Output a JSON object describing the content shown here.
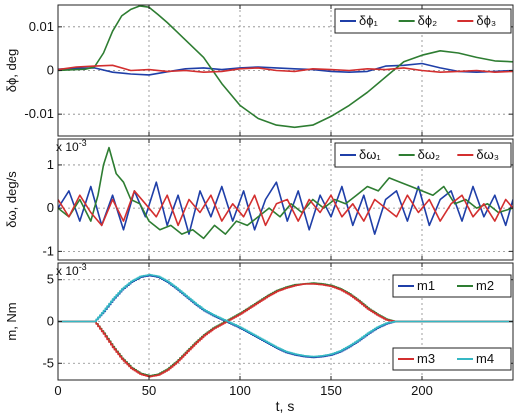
{
  "figure": {
    "xlabel": "t, s"
  },
  "chart_data": [
    {
      "type": "line",
      "ylabel": "δϕ, deg",
      "xlim": [
        0,
        250
      ],
      "ylim": [
        -0.015,
        0.015
      ],
      "xticks": [
        0,
        50,
        100,
        150,
        200
      ],
      "yticks": [
        -0.01,
        0,
        0.01
      ],
      "ytick_labels": [
        "-0.01",
        "0",
        "0.01"
      ],
      "exponent_label": "",
      "grid": true,
      "legend": {
        "placement": "top-right",
        "entries": [
          "δϕ₁",
          "δϕ₂",
          "δϕ₃"
        ]
      },
      "series": [
        {
          "name": "δϕ₁",
          "color": "#1f3fa8",
          "x": [
            0,
            10,
            20,
            30,
            40,
            50,
            60,
            70,
            80,
            90,
            100,
            110,
            120,
            130,
            140,
            150,
            160,
            170,
            180,
            190,
            200,
            210,
            220,
            230,
            240,
            250
          ],
          "y": [
            0.0003,
            0.0005,
            0.0006,
            -0.0004,
            -0.0008,
            -0.001,
            -0.0003,
            0.0004,
            0.0006,
            0.0002,
            0.0006,
            0.0008,
            0.0006,
            0.0004,
            0.0002,
            -0.0002,
            -0.0004,
            -0.0002,
            0.001,
            0.0012,
            0.0016,
            0.0006,
            -0.0002,
            -0.0004,
            -0.0002,
            0.0
          ]
        },
        {
          "name": "δϕ₂",
          "color": "#2e7d32",
          "x": [
            0,
            10,
            15,
            20,
            25,
            30,
            35,
            40,
            45,
            50,
            55,
            60,
            65,
            70,
            80,
            90,
            100,
            110,
            120,
            130,
            140,
            150,
            160,
            170,
            180,
            190,
            200,
            210,
            220,
            230,
            240,
            250
          ],
          "y": [
            0.0,
            0.0002,
            0.0003,
            0.0008,
            0.004,
            0.009,
            0.0125,
            0.014,
            0.0148,
            0.0145,
            0.0128,
            0.011,
            0.009,
            0.007,
            0.003,
            -0.003,
            -0.008,
            -0.011,
            -0.0125,
            -0.013,
            -0.0125,
            -0.0105,
            -0.008,
            -0.005,
            -0.0015,
            0.002,
            0.0035,
            0.0045,
            0.004,
            0.003,
            0.0022,
            0.002
          ]
        },
        {
          "name": "δϕ₃",
          "color": "#d32f2f",
          "x": [
            0,
            10,
            20,
            30,
            40,
            50,
            60,
            70,
            80,
            90,
            100,
            110,
            120,
            130,
            140,
            150,
            160,
            170,
            180,
            190,
            200,
            210,
            220,
            230,
            240,
            250
          ],
          "y": [
            0.0002,
            0.0008,
            0.001,
            0.0012,
            0.0,
            0.0002,
            -0.0002,
            0.0,
            -0.0004,
            -0.0002,
            0.0004,
            0.0006,
            0.0,
            -0.0002,
            0.0004,
            0.0002,
            0.0,
            0.0004,
            0.0002,
            0.0006,
            0.0,
            -0.0004,
            -0.0002,
            0.0,
            -0.0004,
            -0.0002
          ]
        }
      ]
    },
    {
      "type": "line",
      "ylabel": "δω, deg/s",
      "xlim": [
        0,
        250
      ],
      "ylim": [
        -0.0012,
        0.0016
      ],
      "xticks": [
        0,
        50,
        100,
        150,
        200
      ],
      "yticks": [
        -0.001,
        0,
        0.001
      ],
      "ytick_labels": [
        "-1",
        "0",
        "1"
      ],
      "exponent_label": "x 10",
      "exponent_power": "-3",
      "grid": true,
      "legend": {
        "placement": "top-right",
        "entries": [
          "δω₁",
          "δω₂",
          "δω₃"
        ]
      },
      "series": [
        {
          "name": "δω₁",
          "color": "#1f3fa8",
          "x": [
            0,
            6,
            12,
            18,
            24,
            30,
            36,
            42,
            48,
            54,
            60,
            66,
            72,
            78,
            84,
            90,
            96,
            102,
            108,
            114,
            120,
            126,
            132,
            138,
            144,
            150,
            156,
            162,
            168,
            174,
            180,
            186,
            192,
            198,
            204,
            210,
            216,
            222,
            228,
            234,
            240,
            246,
            250
          ],
          "y": [
            0.0,
            0.0004,
            -0.0003,
            0.0005,
            -0.0004,
            0.0003,
            -0.0005,
            0.0004,
            -0.0002,
            0.0006,
            -0.0004,
            0.0003,
            -0.0006,
            0.0004,
            -0.0002,
            0.0005,
            -0.0003,
            0.0004,
            -0.0005,
            0.0002,
            0.0006,
            -0.0003,
            0.0004,
            -0.0005,
            0.0003,
            -0.0002,
            0.0005,
            -0.0004,
            0.0003,
            -0.0006,
            0.0002,
            0.0004,
            -0.0003,
            0.0005,
            -0.0004,
            0.0002,
            0.0004,
            -0.0003,
            0.0005,
            -0.0002,
            0.0003,
            -0.0004,
            0.0002
          ]
        },
        {
          "name": "δω₂",
          "color": "#2e7d32",
          "x": [
            0,
            6,
            12,
            18,
            22,
            25,
            28,
            32,
            36,
            40,
            45,
            50,
            56,
            62,
            68,
            74,
            80,
            86,
            92,
            98,
            104,
            110,
            116,
            122,
            128,
            134,
            140,
            146,
            152,
            158,
            164,
            170,
            176,
            182,
            188,
            194,
            200,
            206,
            212,
            218,
            224,
            230,
            236,
            242,
            250
          ],
          "y": [
            0.0,
            -0.0002,
            0.0002,
            -0.0003,
            0.0003,
            0.001,
            0.0014,
            0.0008,
            0.0006,
            0.0002,
            0.0001,
            -0.0003,
            -0.0005,
            -0.0004,
            -0.0006,
            -0.0005,
            -0.0007,
            -0.0004,
            -0.0006,
            -0.0003,
            -0.0004,
            -0.0002,
            0.0,
            -0.0002,
            0.0001,
            -0.0001,
            0.0002,
            0.0,
            0.0002,
            0.0001,
            0.0003,
            0.0005,
            0.0004,
            0.0007,
            0.0006,
            0.0005,
            0.0004,
            0.0003,
            0.0005,
            0.0001,
            0.0002,
            0.0,
            0.0001,
            -0.0001,
            0.0
          ]
        },
        {
          "name": "δω₃",
          "color": "#d32f2f",
          "x": [
            0,
            6,
            12,
            18,
            24,
            30,
            36,
            42,
            48,
            54,
            60,
            66,
            72,
            78,
            84,
            90,
            96,
            102,
            108,
            114,
            120,
            126,
            132,
            138,
            144,
            150,
            156,
            162,
            168,
            174,
            180,
            186,
            192,
            198,
            204,
            210,
            216,
            222,
            228,
            234,
            240,
            246,
            250
          ],
          "y": [
            0.0002,
            -0.0002,
            0.0003,
            -0.0001,
            -0.0004,
            0.0002,
            -0.0003,
            0.0004,
            0.0001,
            -0.0002,
            0.0003,
            -0.0004,
            0.0002,
            -0.0001,
            0.0003,
            -0.0003,
            0.0001,
            -0.0002,
            0.0003,
            -0.0004,
            0.0001,
            0.0002,
            -0.0003,
            0.0002,
            -0.0001,
            0.0003,
            -0.0002,
            0.0001,
            -0.0003,
            0.0002,
            0.0,
            -0.0002,
            0.0003,
            -0.0001,
            0.0002,
            -0.0003,
            0.0001,
            0.0003,
            -0.0002,
            0.0001,
            -0.0003,
            0.0002,
            0.0
          ]
        }
      ]
    },
    {
      "type": "line",
      "ylabel": "m, Nm",
      "xlim": [
        0,
        250
      ],
      "ylim": [
        -0.007,
        0.007
      ],
      "xticks": [
        0,
        50,
        100,
        150,
        200
      ],
      "yticks": [
        -0.005,
        0,
        0.005
      ],
      "ytick_labels": [
        "-5",
        "0",
        "5"
      ],
      "exponent_label": "x 10",
      "exponent_power": "-3",
      "grid": true,
      "legend": {
        "placement": "split: m1, m2 top-right; m3, m4 bottom-right",
        "entries": [
          "m1",
          "m2",
          "m3",
          "m4"
        ]
      },
      "series": [
        {
          "name": "m1",
          "color": "#1f3fa8",
          "x": [
            0,
            20,
            25,
            30,
            35,
            40,
            45,
            50,
            55,
            60,
            65,
            70,
            75,
            80,
            85,
            90,
            95,
            100,
            105,
            110,
            115,
            120,
            125,
            130,
            135,
            140,
            145,
            150,
            155,
            160,
            165,
            170,
            175,
            180,
            185,
            190,
            200,
            250
          ],
          "y": [
            0.0,
            0.0,
            0.0012,
            0.0026,
            0.0038,
            0.0047,
            0.0053,
            0.0055,
            0.0053,
            0.0047,
            0.0039,
            0.003,
            0.0021,
            0.0013,
            0.0007,
            0.0002,
            -0.0003,
            -0.0008,
            -0.0014,
            -0.002,
            -0.0026,
            -0.0032,
            -0.0037,
            -0.004,
            -0.0042,
            -0.0043,
            -0.0042,
            -0.004,
            -0.0036,
            -0.003,
            -0.0023,
            -0.0015,
            -0.0008,
            -0.0003,
            0.0,
            0.0,
            0.0,
            0.0
          ]
        },
        {
          "name": "m2",
          "color": "#2e7d32",
          "x": [
            0,
            20,
            25,
            30,
            35,
            40,
            45,
            50,
            55,
            60,
            65,
            70,
            75,
            80,
            85,
            90,
            95,
            100,
            105,
            110,
            115,
            120,
            125,
            130,
            135,
            140,
            145,
            150,
            155,
            160,
            165,
            170,
            175,
            180,
            185,
            190,
            200,
            250
          ],
          "y": [
            0.0,
            0.0,
            -0.0014,
            -0.003,
            -0.0044,
            -0.0055,
            -0.0062,
            -0.0065,
            -0.0063,
            -0.0057,
            -0.0048,
            -0.0037,
            -0.0026,
            -0.0016,
            -0.0008,
            -0.0002,
            0.0004,
            0.001,
            0.0017,
            0.0024,
            0.0031,
            0.0037,
            0.0041,
            0.0044,
            0.0045,
            0.0046,
            0.0045,
            0.0043,
            0.0039,
            0.0033,
            0.0025,
            0.0016,
            0.0009,
            0.0003,
            0.0,
            0.0,
            0.0,
            0.0
          ]
        },
        {
          "name": "m3",
          "color": "#d32f2f",
          "x": [
            0,
            20,
            25,
            30,
            35,
            40,
            45,
            50,
            55,
            60,
            65,
            70,
            75,
            80,
            85,
            90,
            95,
            100,
            105,
            110,
            115,
            120,
            125,
            130,
            135,
            140,
            145,
            150,
            155,
            160,
            165,
            170,
            175,
            180,
            185,
            190,
            200,
            250
          ],
          "y": [
            0.0,
            0.0,
            -0.0015,
            -0.0031,
            -0.0045,
            -0.0056,
            -0.0063,
            -0.0066,
            -0.0064,
            -0.0058,
            -0.0049,
            -0.0038,
            -0.0027,
            -0.0017,
            -0.0009,
            -0.0003,
            0.0003,
            0.0009,
            0.0016,
            0.0023,
            0.003,
            0.0036,
            0.004,
            0.0043,
            0.0045,
            0.0045,
            0.0044,
            0.0042,
            0.0038,
            0.0032,
            0.0024,
            0.0015,
            0.0008,
            0.0002,
            0.0,
            0.0,
            0.0,
            0.0
          ]
        },
        {
          "name": "m4",
          "color": "#35b8c4",
          "x": [
            0,
            20,
            25,
            30,
            35,
            40,
            45,
            50,
            55,
            60,
            65,
            70,
            75,
            80,
            85,
            90,
            95,
            100,
            105,
            110,
            115,
            120,
            125,
            130,
            135,
            140,
            145,
            150,
            155,
            160,
            165,
            170,
            175,
            180,
            185,
            190,
            200,
            250
          ],
          "y": [
            0.0,
            0.0,
            0.0013,
            0.0027,
            0.0039,
            0.0048,
            0.0054,
            0.0056,
            0.0054,
            0.0048,
            0.004,
            0.0031,
            0.0022,
            0.0014,
            0.0008,
            0.0003,
            -0.0002,
            -0.0007,
            -0.0013,
            -0.0019,
            -0.0025,
            -0.0031,
            -0.0036,
            -0.0039,
            -0.0041,
            -0.0042,
            -0.0041,
            -0.0039,
            -0.0035,
            -0.0029,
            -0.0022,
            -0.0014,
            -0.0007,
            -0.0002,
            0.0,
            0.0,
            0.0,
            0.0
          ]
        }
      ]
    }
  ]
}
